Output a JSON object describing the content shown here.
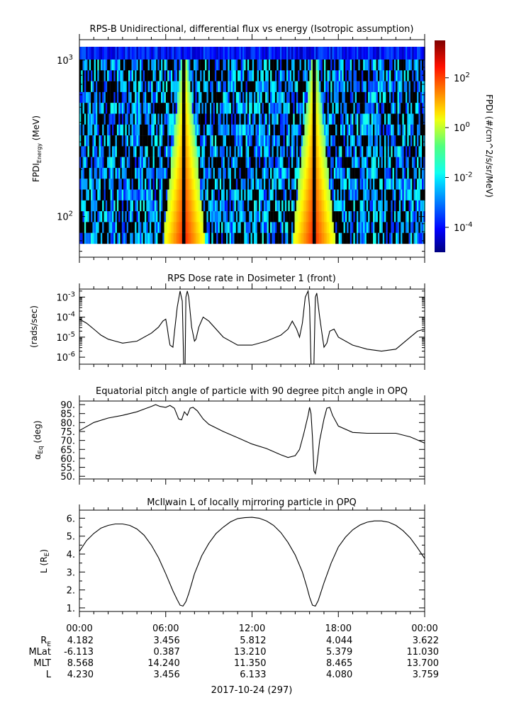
{
  "chart_data": [
    {
      "type": "heatmap",
      "title": "RPS-B  Unidirectional, differential flux vs energy (Isotropic assumption)",
      "ylabel_main": "FPDI",
      "ylabel_sub": "Energy",
      "ylabel_unit": " (MeV)",
      "y_scale": "log",
      "ylim": [
        55,
        1350
      ],
      "y_ticks": [
        {
          "value": 100,
          "base": "10",
          "exp": "2"
        },
        {
          "value": 1000,
          "base": "10",
          "exp": "3"
        }
      ],
      "x_range_hours": [
        0,
        24
      ],
      "colorbar_label": "FPDI (#/cm^2/s/sr/MeV)",
      "colorbar_scale": "log",
      "colorbar_range_exp": [
        -5,
        3.5
      ],
      "colorbar_ticks": [
        {
          "base": "10",
          "exp": "2",
          "value": 2
        },
        {
          "base": "10",
          "exp": "0",
          "value": 0
        },
        {
          "base": "10",
          "exp": "-2",
          "value": -2
        },
        {
          "base": "10",
          "exp": "-4",
          "value": -4
        }
      ],
      "bands": [
        {
          "center_hour": 7.3,
          "note": "radiation belt crossing"
        },
        {
          "center_hour": 16.3,
          "note": "radiation belt crossing"
        }
      ]
    },
    {
      "type": "line",
      "title": "RPS  Dose rate in Dosimeter 1 (front)",
      "ylabel": "(rads/sec)",
      "y_scale": "log",
      "ylim_exp": [
        -6.35,
        -2.6
      ],
      "y_ticks": [
        {
          "base": "10",
          "exp": "-3",
          "value": -3
        },
        {
          "base": "10",
          "exp": "-4",
          "value": -4
        },
        {
          "base": "10",
          "exp": "-5",
          "value": -5
        },
        {
          "base": "10",
          "exp": "-6",
          "value": -6
        }
      ],
      "x_hours": [
        0,
        0.5,
        1,
        1.5,
        2,
        2.5,
        3,
        4,
        5,
        5.5,
        5.8,
        6.0,
        6.1,
        6.2,
        6.3,
        6.5,
        6.6,
        6.8,
        7.0,
        7.15,
        7.25,
        7.3,
        7.35,
        7.4,
        7.5,
        7.6,
        7.8,
        8.0,
        8.1,
        8.3,
        8.6,
        9,
        10,
        11,
        12,
        13,
        14,
        14.5,
        14.8,
        15.1,
        15.3,
        15.5,
        15.7,
        15.9,
        16.0,
        16.1,
        16.2,
        16.3,
        16.4,
        16.5,
        16.7,
        16.9,
        17.0,
        17.2,
        17.4,
        17.7,
        18,
        19,
        20,
        21,
        22,
        23,
        23.5,
        24
      ],
      "y_log10": [
        -4.1,
        -4.3,
        -4.6,
        -4.9,
        -5.1,
        -5.2,
        -5.3,
        -5.2,
        -4.8,
        -4.5,
        -4.2,
        -4.1,
        -4.5,
        -5.0,
        -5.4,
        -5.5,
        -4.8,
        -3.5,
        -2.7,
        -3.2,
        -6.4,
        -6.4,
        -6.4,
        -3.0,
        -2.7,
        -3.0,
        -4.5,
        -5.2,
        -5.1,
        -4.5,
        -4.0,
        -4.2,
        -5.0,
        -5.4,
        -5.4,
        -5.2,
        -4.9,
        -4.6,
        -4.2,
        -4.6,
        -5.0,
        -4.3,
        -3.0,
        -2.7,
        -3.5,
        -6.4,
        -6.4,
        -6.4,
        -3.0,
        -2.8,
        -4.0,
        -5.0,
        -5.5,
        -5.3,
        -4.7,
        -4.6,
        -5.0,
        -5.4,
        -5.6,
        -5.7,
        -5.6,
        -5.0,
        -4.7,
        -4.6
      ]
    },
    {
      "type": "line",
      "title": "Equatorial pitch angle of particle with 90 degree pitch angle in OPQ",
      "ylabel_main": "α",
      "ylabel_sub": "Eq",
      "ylabel_unit": " (deg)",
      "ylim": [
        48.5,
        92
      ],
      "y_ticks": [
        90,
        85,
        80,
        75,
        70,
        65,
        60,
        55,
        50
      ],
      "x_hours": [
        0,
        1,
        2,
        3,
        4,
        4.5,
        5,
        5.3,
        5.6,
        6,
        6.3,
        6.6,
        6.9,
        7.1,
        7.3,
        7.5,
        7.7,
        7.9,
        8.2,
        8.6,
        9,
        10,
        11,
        12,
        13,
        14,
        14.5,
        15,
        15.3,
        15.6,
        15.9,
        16.0,
        16.1,
        16.2,
        16.3,
        16.4,
        16.5,
        16.7,
        17,
        17.2,
        17.4,
        17.6,
        18,
        19,
        20,
        21,
        22,
        23,
        24
      ],
      "y": [
        75.5,
        80,
        82.5,
        84,
        86,
        87.5,
        89,
        90,
        89,
        88.5,
        89.5,
        88,
        82,
        81.5,
        86,
        84,
        88,
        88.5,
        86.5,
        82,
        79,
        75,
        71.5,
        68,
        65.5,
        62,
        60.5,
        61.5,
        65,
        74,
        84,
        88.5,
        85,
        72,
        53,
        51.5,
        56,
        70,
        82,
        88,
        88.5,
        84,
        78,
        74.5,
        74,
        74,
        74,
        72,
        68.5
      ]
    },
    {
      "type": "line",
      "title": "McIlwain L of locally mirroring particle in OPQ",
      "ylabel_main": "L (R",
      "ylabel_sub": "E",
      "ylabel_unit": ")",
      "ylim": [
        0.8,
        6.45
      ],
      "y_ticks": [
        1,
        2,
        3,
        4,
        5,
        6
      ],
      "x_hours": [
        0,
        0.5,
        1,
        1.5,
        2,
        2.5,
        3,
        3.5,
        4,
        4.5,
        5,
        5.5,
        6,
        6.5,
        6.8,
        7.0,
        7.2,
        7.4,
        7.6,
        7.8,
        8,
        8.5,
        9,
        9.5,
        10,
        10.5,
        11,
        11.5,
        12,
        12.5,
        13,
        13.5,
        14,
        14.5,
        15,
        15.5,
        15.8,
        16.0,
        16.2,
        16.4,
        16.6,
        16.8,
        17,
        17.5,
        18,
        18.5,
        19,
        19.5,
        20,
        20.5,
        21,
        21.5,
        22,
        22.5,
        23,
        23.5,
        24
      ],
      "y": [
        4.15,
        4.75,
        5.15,
        5.45,
        5.6,
        5.68,
        5.68,
        5.6,
        5.4,
        5.05,
        4.5,
        3.8,
        2.9,
        1.95,
        1.45,
        1.15,
        1.1,
        1.35,
        1.8,
        2.35,
        2.9,
        3.9,
        4.6,
        5.15,
        5.5,
        5.8,
        5.98,
        6.03,
        6.05,
        6.0,
        5.85,
        5.6,
        5.2,
        4.65,
        3.95,
        3.0,
        2.2,
        1.6,
        1.15,
        1.1,
        1.4,
        1.9,
        2.4,
        3.5,
        4.4,
        4.95,
        5.35,
        5.62,
        5.78,
        5.85,
        5.85,
        5.78,
        5.6,
        5.3,
        4.9,
        4.35,
        3.75
      ]
    }
  ],
  "time_axis": {
    "tick_labels": [
      "00:00",
      "06:00",
      "12:00",
      "18:00",
      "00:00"
    ],
    "tick_hours": [
      0,
      6,
      12,
      18,
      24
    ],
    "rows": [
      {
        "label_main": "R",
        "label_sub": "E",
        "values": [
          "4.182",
          "3.456",
          "5.812",
          "4.044",
          "3.622"
        ]
      },
      {
        "label_main": "MLat",
        "label_sub": "",
        "values": [
          "-6.113",
          "0.387",
          "13.210",
          "5.379",
          "11.030"
        ]
      },
      {
        "label_main": "MLT",
        "label_sub": "",
        "values": [
          "8.568",
          "14.240",
          "11.350",
          "8.465",
          "13.700"
        ]
      },
      {
        "label_main": "L",
        "label_sub": "",
        "values": [
          "4.230",
          "3.456",
          "6.133",
          "4.080",
          "3.759"
        ]
      }
    ],
    "date_label": "2017-10-24 (297)"
  }
}
